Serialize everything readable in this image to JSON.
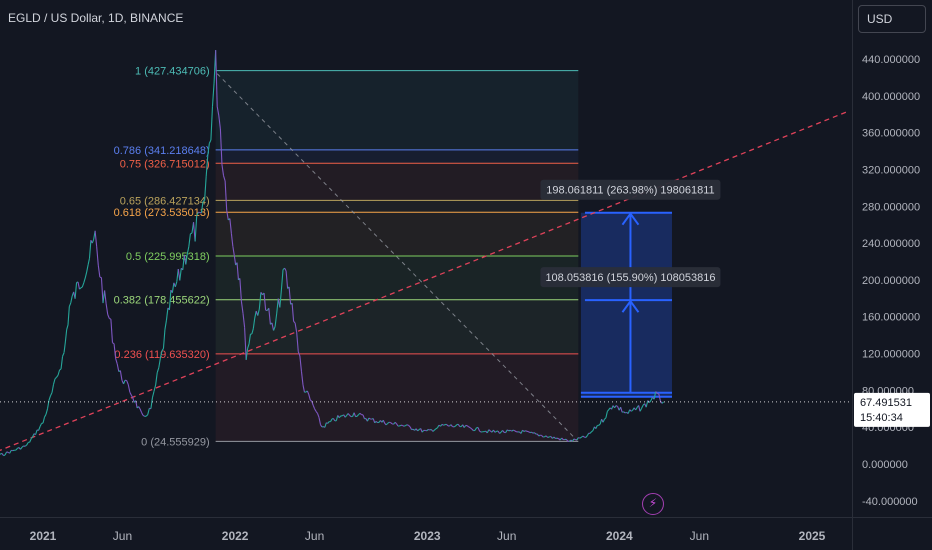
{
  "header": {
    "title": "EGLD / US Dollar, 1D, BINANCE",
    "currency_button": "USD"
  },
  "chart_data": {
    "type": "line",
    "title": "EGLD / US Dollar, 1D, BINANCE",
    "y_axis": {
      "ylim": [
        -55,
        490
      ],
      "ticks": [
        "440.000000",
        "400.000000",
        "360.000000",
        "320.000000",
        "280.000000",
        "240.000000",
        "200.000000",
        "160.000000",
        "120.000000",
        "80.000000",
        "40.000000",
        "0.000000",
        "-40.000000"
      ],
      "tick_values": [
        440,
        400,
        360,
        320,
        280,
        240,
        200,
        160,
        120,
        80,
        40,
        0,
        -40
      ],
      "position": "right"
    },
    "x_axis": {
      "range": [
        "2020-08-15",
        "2025-03-01"
      ],
      "ticks": [
        {
          "label": "2021",
          "date": "2021-01-01",
          "bold": true
        },
        {
          "label": "Jun",
          "date": "2021-06-01",
          "bold": false
        },
        {
          "label": "2022",
          "date": "2022-01-01",
          "bold": true
        },
        {
          "label": "Jun",
          "date": "2022-06-01",
          "bold": false
        },
        {
          "label": "2023",
          "date": "2023-01-01",
          "bold": true
        },
        {
          "label": "Jun",
          "date": "2023-06-01",
          "bold": false
        },
        {
          "label": "2024",
          "date": "2024-01-01",
          "bold": true
        },
        {
          "label": "Jun",
          "date": "2024-06-01",
          "bold": false
        },
        {
          "label": "2025",
          "date": "2025-01-01",
          "bold": true
        }
      ]
    },
    "price_series": {
      "name": "EGLD/USD",
      "points": [
        [
          "2020-08-15",
          8
        ],
        [
          "2020-10-15",
          10
        ],
        [
          "2020-12-01",
          20
        ],
        [
          "2021-01-01",
          45
        ],
        [
          "2021-02-10",
          120
        ],
        [
          "2021-02-20",
          170
        ],
        [
          "2021-03-25",
          215
        ],
        [
          "2021-04-10",
          245
        ],
        [
          "2021-04-25",
          185
        ],
        [
          "2021-05-10",
          150
        ],
        [
          "2021-05-25",
          100
        ],
        [
          "2021-06-15",
          80
        ],
        [
          "2021-07-10",
          50
        ],
        [
          "2021-07-25",
          60
        ],
        [
          "2021-08-15",
          120
        ],
        [
          "2021-09-01",
          180
        ],
        [
          "2021-09-15",
          200
        ],
        [
          "2021-10-05",
          240
        ],
        [
          "2021-11-01",
          270
        ],
        [
          "2021-11-25",
          430
        ],
        [
          "2021-12-10",
          320
        ],
        [
          "2021-12-25",
          250
        ],
        [
          "2022-01-10",
          205
        ],
        [
          "2022-01-22",
          120
        ],
        [
          "2022-02-10",
          165
        ],
        [
          "2022-02-25",
          185
        ],
        [
          "2022-03-15",
          140
        ],
        [
          "2022-04-05",
          210
        ],
        [
          "2022-04-25",
          155
        ],
        [
          "2022-05-10",
          85
        ],
        [
          "2022-06-01",
          60
        ],
        [
          "2022-06-15",
          40
        ],
        [
          "2022-07-15",
          50
        ],
        [
          "2022-08-15",
          55
        ],
        [
          "2022-09-15",
          48
        ],
        [
          "2022-10-15",
          45
        ],
        [
          "2022-11-15",
          42
        ],
        [
          "2022-12-31",
          35
        ],
        [
          "2023-02-01",
          42
        ],
        [
          "2023-03-15",
          40
        ],
        [
          "2023-05-01",
          35
        ],
        [
          "2023-07-01",
          35
        ],
        [
          "2023-08-15",
          30
        ],
        [
          "2023-10-01",
          25
        ],
        [
          "2023-11-01",
          30
        ],
        [
          "2023-12-01",
          48
        ],
        [
          "2023-12-20",
          65
        ],
        [
          "2024-01-15",
          55
        ],
        [
          "2024-02-15",
          62
        ],
        [
          "2024-03-10",
          75
        ],
        [
          "2024-03-25",
          67.491531
        ]
      ]
    },
    "current_price": {
      "value": 67.491531,
      "label": "67.491531",
      "countdown": "15:40:34"
    },
    "fibonacci": {
      "start_date": "2021-11-25",
      "end_date": "2023-10-15",
      "color": "#787b86",
      "levels": [
        {
          "label": "1 (427.434706)",
          "value": 427.434706,
          "color": "#4dbcb6"
        },
        {
          "label": "0.786 (341.218648)",
          "value": 341.218648,
          "color": "#5b7fef"
        },
        {
          "label": "0.75 (326.715012)",
          "value": 326.715012,
          "color": "#f06048"
        },
        {
          "label": "0.65 (286.427134)",
          "value": 286.427134,
          "color": "#b9a25c"
        },
        {
          "label": "0.618 (273.535013)",
          "value": 273.535013,
          "color": "#f7a54a"
        },
        {
          "label": "0.5 (225.995318)",
          "value": 225.995318,
          "color": "#7fce60"
        },
        {
          "label": "0.382 (178.455622)",
          "value": 178.455622,
          "color": "#9bd67a"
        },
        {
          "label": "0.236 (119.635320)",
          "value": 119.63532,
          "color": "#f05050"
        },
        {
          "label": "0 (24.555929)",
          "value": 24.555929,
          "color": "#9598a1"
        }
      ]
    },
    "diagonal_line": {
      "from": [
        "2021-11-28",
        424
      ],
      "to": [
        "2023-10-12",
        26
      ],
      "color": "#9598a1"
    },
    "trend_line": {
      "from": [
        "2020-09-20",
        10
      ],
      "to": [
        "2025-03-10",
        383
      ],
      "color": "#e0425a"
    },
    "projection": {
      "from_date": "2023-10-20",
      "to_date": "2024-04-10",
      "base": 73,
      "top": 273,
      "mid": 178,
      "color": "#2962ff",
      "labels": [
        {
          "text": "198.061811 (263.98%) 198061811",
          "value": 298
        },
        {
          "text": "108.053816 (155.90%) 108053816",
          "value": 203
        }
      ]
    },
    "grid": false,
    "legend": "none"
  }
}
